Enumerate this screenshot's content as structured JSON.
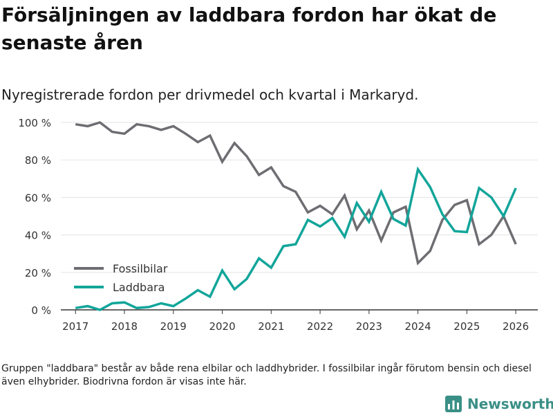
{
  "header": {
    "title": "Försäljningen av laddbara fordon har ökat de senaste åren",
    "subtitle": "Nyregistrerade fordon per drivmedel och kvartal i Markaryd."
  },
  "footer": {
    "note": "Gruppen \"laddbara\" består av både rena elbilar och laddhybrider. I fossilbilar ingår förutom bensin och diesel även elhybrider. Biodrivna fordon är visas inte här.",
    "brand": "Newsworthy"
  },
  "colors": {
    "fossil": "#6e6d72",
    "laddbara": "#12a59a",
    "grid": "#e3e3e3",
    "axis": "#333333",
    "brand": "#3a8f86"
  },
  "chart_data": {
    "type": "line",
    "title": "Försäljningen av laddbara fordon har ökat de senaste åren",
    "subtitle": "Nyregistrerade fordon per drivmedel och kvartal i Markaryd.",
    "xlabel": "",
    "ylabel": "",
    "xlim": [
      2016.7,
      2026.45
    ],
    "ylim": [
      0,
      100
    ],
    "x_ticks": [
      2017,
      2018,
      2019,
      2020,
      2021,
      2022,
      2023,
      2024,
      2025,
      2026
    ],
    "x_tick_labels": [
      "2017",
      "2018",
      "2019",
      "2020",
      "2021",
      "2022",
      "2023",
      "2024",
      "2025",
      "2026"
    ],
    "y_ticks": [
      0,
      20,
      40,
      60,
      80,
      100
    ],
    "y_tick_labels": [
      "0 %",
      "20 %",
      "40 %",
      "60 %",
      "80 %",
      "100 %"
    ],
    "grid": true,
    "legend_position": "bottom-left",
    "x": [
      2017.0,
      2017.25,
      2017.5,
      2017.75,
      2018.0,
      2018.25,
      2018.5,
      2018.75,
      2019.0,
      2019.25,
      2019.5,
      2019.75,
      2020.0,
      2020.25,
      2020.5,
      2020.75,
      2021.0,
      2021.25,
      2021.5,
      2021.75,
      2022.0,
      2022.25,
      2022.5,
      2022.75,
      2023.0,
      2023.25,
      2023.5,
      2023.75,
      2024.0,
      2024.25,
      2024.5,
      2024.75,
      2025.0,
      2025.25,
      2025.5,
      2025.75,
      2026.0
    ],
    "series": [
      {
        "name": "Fossilbilar",
        "color": "#6e6d72",
        "values": [
          99,
          98,
          100,
          95,
          94,
          99,
          98,
          96,
          98,
          94,
          89.5,
          93,
          79,
          89,
          82,
          72,
          76,
          66,
          63,
          52,
          55.5,
          51,
          61,
          43,
          53,
          37,
          52,
          55,
          25,
          31.5,
          48,
          56,
          58.5,
          35,
          40,
          50,
          35
        ]
      },
      {
        "name": "Laddbara",
        "color": "#12a59a",
        "values": [
          1,
          2,
          0,
          3.5,
          4,
          1,
          1.5,
          3.5,
          2,
          6,
          10.5,
          7,
          21,
          11,
          16.5,
          27.5,
          22.5,
          34,
          35,
          48,
          44.5,
          49,
          39,
          57,
          47,
          63,
          48.5,
          45,
          75,
          65.5,
          51,
          42,
          41.5,
          65,
          60,
          50,
          65
        ]
      }
    ]
  }
}
